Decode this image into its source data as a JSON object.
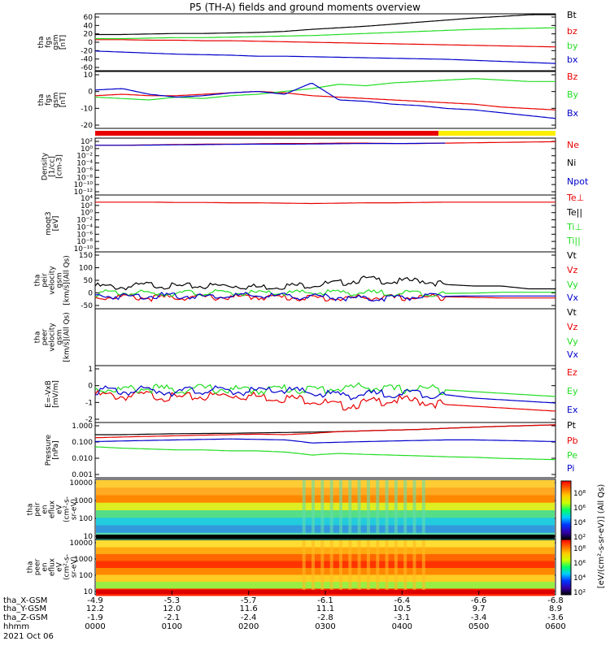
{
  "title": "P5 (TH-A) fields and ground moments overview",
  "colors": {
    "black": "#000000",
    "red": "#e80000",
    "green": "#22dd22",
    "blue": "#0000cc",
    "yellow": "#ffee00"
  },
  "chart_data": [
    {
      "type": "line",
      "ylabel": [
        "tha",
        "fgs",
        "gsm",
        "[nT]"
      ],
      "ylim": [
        -50,
        60
      ],
      "yticks": [
        "60",
        "40",
        "20",
        "0",
        "-20",
        "-40",
        "-60"
      ],
      "grid": false,
      "series": [
        {
          "name": "Bt",
          "color": "#000000",
          "values": [
            20,
            20,
            21,
            22,
            22,
            23,
            24,
            26,
            30,
            33,
            36,
            40,
            44,
            48,
            52,
            55,
            58,
            60
          ]
        },
        {
          "name": "bz",
          "color": "#e80000",
          "values": [
            10,
            10,
            9,
            9,
            8,
            8,
            7,
            6,
            5,
            4,
            3,
            2,
            1,
            0,
            -1,
            -2,
            -3,
            -4
          ]
        },
        {
          "name": "by",
          "color": "#22dd22",
          "values": [
            12,
            12,
            13,
            14,
            14,
            15,
            16,
            17,
            18,
            20,
            22,
            24,
            26,
            28,
            30,
            31,
            32,
            33
          ]
        },
        {
          "name": "bx",
          "color": "#0000cc",
          "values": [
            -12,
            -14,
            -16,
            -18,
            -19,
            -20,
            -22,
            -22,
            -23,
            -24,
            -25,
            -26,
            -27,
            -28,
            -30,
            -32,
            -34,
            -36
          ]
        }
      ]
    },
    {
      "type": "line",
      "ylabel": [
        "tha",
        "fgs",
        "gsm",
        "[nT]"
      ],
      "ylim": [
        -25,
        15
      ],
      "yticks": [
        "10",
        "0",
        "-10",
        "-20"
      ],
      "grid": false,
      "series": [
        {
          "name": "Bz",
          "color": "#e80000",
          "values": [
            -2,
            -1,
            -2,
            -2,
            -1,
            0,
            1,
            0,
            -2,
            -3,
            -4,
            -5,
            -6,
            -7,
            -8,
            -10,
            -11,
            -12
          ]
        },
        {
          "name": "By",
          "color": "#22dd22",
          "values": [
            -3,
            -4,
            -5,
            -3,
            -4,
            -2,
            -1,
            1,
            3,
            6,
            5,
            7,
            8,
            9,
            10,
            9,
            8,
            8
          ]
        },
        {
          "name": "Bx",
          "color": "#0000cc",
          "values": [
            2,
            3,
            -1,
            -3,
            -2,
            0,
            1,
            -1,
            7,
            -5,
            -6,
            -8,
            -9,
            -11,
            -12,
            -14,
            -16,
            -18
          ]
        }
      ]
    },
    {
      "type": "line",
      "ylabel": [
        "Density",
        "[1/cc]",
        "[cm-3]"
      ],
      "ylim": [
        -13,
        3
      ],
      "yticks": [
        "10²",
        "10⁰",
        "10⁻²",
        "10⁻⁴",
        "10⁻⁶",
        "10⁻⁸",
        "10⁻¹⁰",
        "10⁻¹²"
      ],
      "log": true,
      "series": [
        {
          "name": "Ne",
          "color": "#e80000",
          "values": [
            1.0,
            1.0,
            1.1,
            1.2,
            1.3,
            1.3,
            1.4,
            1.5,
            1.5,
            1.6,
            1.6,
            1.5,
            1.5,
            1.6,
            1.7,
            1.8,
            1.9,
            2.0
          ]
        },
        {
          "name": "Ni",
          "color": "#000000",
          "values": []
        },
        {
          "name": "Npot",
          "color": "#0000cc",
          "values": [
            1.0,
            1.0,
            1.1,
            1.2,
            1.3,
            1.3,
            1.4,
            1.5,
            1.5,
            1.6
          ]
        }
      ]
    },
    {
      "type": "line",
      "ylabel": [
        "moqt3",
        "[eV]"
      ],
      "ylim": [
        -11,
        5
      ],
      "yticks": [
        "10⁴",
        "10²",
        "10⁰",
        "10⁻²",
        "10⁻⁴",
        "10⁻⁶",
        "10⁻⁸",
        "10⁻¹⁰"
      ],
      "log": true,
      "series": [
        {
          "name": "Te⊥",
          "color": "#e80000",
          "values": [
            3.0,
            3.0,
            3.0,
            2.9,
            2.9,
            2.8,
            2.8,
            2.7,
            2.6,
            2.7,
            2.8,
            2.8,
            2.9,
            3.0,
            3.0,
            3.0,
            3.0,
            3.0
          ]
        },
        {
          "name": "Te||",
          "color": "#000000",
          "values": []
        },
        {
          "name": "Ti⊥",
          "color": "#22dd22",
          "values": []
        },
        {
          "name": "Ti||",
          "color": "#22dd22",
          "values": []
        }
      ]
    },
    {
      "type": "line",
      "ylabel": [
        "tha",
        "peir",
        "velocity",
        "gsm",
        "[km/s](All Qs)"
      ],
      "ylim": [
        -50,
        150
      ],
      "yticks": [
        "150",
        "100",
        "50",
        "0",
        "-50"
      ],
      "series": [
        {
          "name": "Vt",
          "color": "#000000",
          "values": [
            30,
            25,
            35,
            28,
            30,
            32,
            26,
            30,
            34,
            40,
            55,
            45,
            50,
            35,
            30,
            30,
            20,
            20
          ]
        },
        {
          "name": "Vz",
          "color": "#e80000",
          "values": [
            -10,
            -8,
            -12,
            -10,
            -9,
            -10,
            -8,
            -10,
            -12,
            -14,
            -10,
            -12,
            -10,
            -8,
            -10,
            -12,
            -12,
            -12
          ]
        },
        {
          "name": "Vy",
          "color": "#22dd22",
          "values": [
            5,
            6,
            4,
            5,
            6,
            5,
            4,
            5,
            6,
            8,
            5,
            6,
            5,
            4,
            5,
            8,
            8,
            8
          ]
        },
        {
          "name": "Vx",
          "color": "#0000cc",
          "values": [
            -5,
            -6,
            -4,
            -5,
            -6,
            -4,
            -5,
            -6,
            -8,
            -10,
            -15,
            -10,
            -8,
            -6,
            -5,
            -5,
            -5,
            -5
          ]
        }
      ]
    },
    {
      "type": "line",
      "ylabel": [
        "tha",
        "peer",
        "velocity",
        "gsm",
        "[km/s](All Qs)"
      ],
      "series": [
        {
          "name": "Vt",
          "color": "#000000",
          "values": []
        },
        {
          "name": "Vz",
          "color": "#e80000",
          "values": []
        },
        {
          "name": "Vy",
          "color": "#22dd22",
          "values": []
        },
        {
          "name": "Vx",
          "color": "#0000cc",
          "values": []
        }
      ]
    },
    {
      "type": "line",
      "ylabel": [
        "E=-VxB",
        "[mV/m]"
      ],
      "ylim": [
        -2,
        1.5
      ],
      "yticks": [
        "1",
        "0",
        "-1",
        "-2"
      ],
      "series": [
        {
          "name": "Ez",
          "color": "#e80000",
          "values": [
            -0.3,
            -0.4,
            -0.3,
            -0.5,
            -0.4,
            -0.3,
            -0.4,
            -0.5,
            -0.6,
            -1.0,
            -0.8,
            -0.6,
            -0.7,
            -0.9,
            -1.0,
            -1.1,
            -1.2,
            -1.3
          ]
        },
        {
          "name": "Ey",
          "color": "#22dd22",
          "values": [
            0.1,
            0.0,
            0.1,
            0.0,
            0.1,
            0.0,
            0.0,
            0.1,
            0.0,
            0.1,
            0.2,
            0.0,
            0.1,
            0.0,
            -0.1,
            -0.2,
            -0.3,
            -0.4
          ]
        },
        {
          "name": "Ex",
          "color": "#0000cc",
          "values": [
            0.0,
            -0.1,
            0.0,
            -0.1,
            0.0,
            -0.1,
            -0.1,
            0.0,
            -0.2,
            -0.3,
            -0.3,
            -0.2,
            -0.2,
            -0.3,
            -0.5,
            -0.6,
            -0.7,
            -0.8
          ]
        }
      ]
    },
    {
      "type": "line",
      "ylabel": [
        "Pressure",
        "[nPa]"
      ],
      "ylim": [
        0.001,
        1.5
      ],
      "log": true,
      "yticks": [
        "1.000",
        "0.100",
        "0.010",
        "0.001"
      ],
      "series": [
        {
          "name": "Pt",
          "color": "#000000",
          "values": [
            0.3,
            0.3,
            0.32,
            0.34,
            0.35,
            0.36,
            0.38,
            0.4,
            0.42,
            0.45,
            0.5,
            0.55,
            0.6,
            0.7,
            0.8,
            0.9,
            1.0,
            1.1
          ]
        },
        {
          "name": "Pb",
          "color": "#e80000",
          "values": [
            0.2,
            0.22,
            0.24,
            0.26,
            0.28,
            0.3,
            0.32,
            0.3,
            0.35,
            0.45,
            0.5,
            0.55,
            0.6,
            0.7,
            0.8,
            0.9,
            1.0,
            1.1
          ]
        },
        {
          "name": "Pe",
          "color": "#22dd22",
          "values": [
            0.06,
            0.05,
            0.045,
            0.04,
            0.04,
            0.035,
            0.035,
            0.03,
            0.02,
            0.025,
            0.022,
            0.02,
            0.018,
            0.016,
            0.015,
            0.013,
            0.012,
            0.011
          ]
        },
        {
          "name": "Pi",
          "color": "#0000cc",
          "values": [
            0.12,
            0.13,
            0.14,
            0.15,
            0.16,
            0.17,
            0.16,
            0.15,
            0.1,
            0.11,
            0.12,
            0.13,
            0.14,
            0.15,
            0.15,
            0.14,
            0.13,
            0.12
          ]
        }
      ]
    },
    {
      "type": "heatmap",
      "ylabel": [
        "tha",
        "peir",
        "en",
        "eflux",
        "eV",
        "(cm²-s-",
        "sr-eV)"
      ],
      "yticks": [
        "10000",
        "1000",
        "100",
        "10"
      ],
      "log": true
    },
    {
      "type": "heatmap",
      "ylabel": [
        "tha",
        "peer",
        "en",
        "eflux",
        "eV",
        "(cm²-s-",
        "sr-eV)"
      ],
      "yticks": [
        "10000",
        "1000",
        "100",
        "10"
      ],
      "log": true
    }
  ],
  "colorbar": {
    "label": "[eV/(cm²-s-sr-eV)] (All Qs)",
    "ticks_ion": [
      "10⁸",
      "10⁶",
      "10⁴",
      "10²"
    ],
    "ticks_el": [
      "10⁸",
      "10⁶",
      "10⁴",
      "10²"
    ]
  },
  "xaxis": {
    "rows": [
      {
        "label": "tha_X-GSM",
        "values": [
          "-4.9",
          "-5.3",
          "-5.7",
          "-6.1",
          "-6.4",
          "-6.6",
          "-6.8"
        ]
      },
      {
        "label": "tha_Y-GSM",
        "values": [
          "12.2",
          "12.0",
          "11.6",
          "11.1",
          "10.5",
          "9.7",
          "8.9"
        ]
      },
      {
        "label": "tha_Z-GSM",
        "values": [
          "-1.9",
          "-2.1",
          "-2.4",
          "-2.8",
          "-3.1",
          "-3.4",
          "-3.6"
        ]
      },
      {
        "label": "hhmm",
        "values": [
          "0000",
          "0100",
          "0200",
          "0300",
          "0400",
          "0500",
          "0600"
        ]
      }
    ],
    "date": "2021 Oct 06"
  }
}
